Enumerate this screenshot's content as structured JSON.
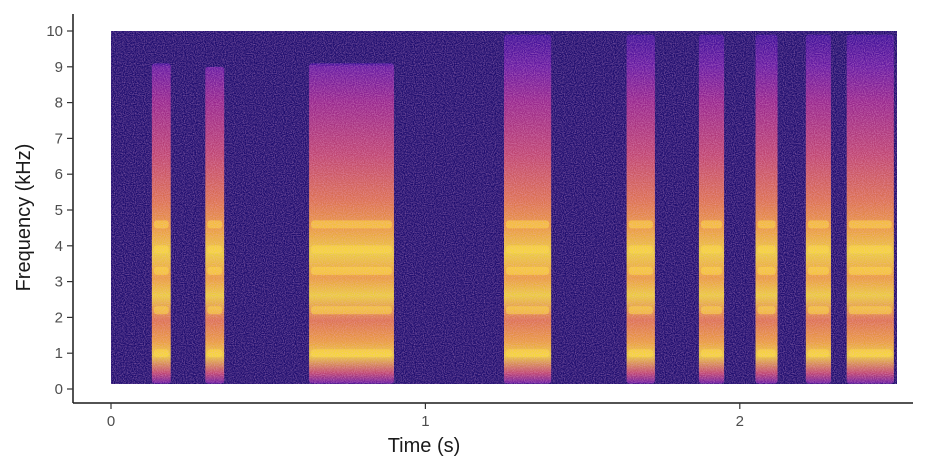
{
  "chart_data": {
    "type": "heatmap",
    "subtype": "spectrogram",
    "title": "",
    "xlabel": "Time (s)",
    "ylabel": "Frequency (kHz)",
    "xlim": [
      0,
      2.5
    ],
    "ylim": [
      0,
      10
    ],
    "x_ticks": [
      0,
      1,
      2
    ],
    "y_ticks": [
      0,
      1,
      2,
      3,
      4,
      5,
      6,
      7,
      8,
      9,
      10
    ],
    "x_tick_labels": [
      "0",
      "1",
      "2"
    ],
    "y_tick_labels": [
      "0",
      "1",
      "2",
      "3",
      "4",
      "5",
      "6",
      "7",
      "8",
      "9",
      "10"
    ],
    "grid": false,
    "legend": "none",
    "colormap": [
      "#0d0887",
      "#3b0d9b",
      "#6a1aa6",
      "#a0288f",
      "#cc4a70",
      "#ec7a4c",
      "#fba938",
      "#fde035"
    ],
    "background_color": "#1c0c6e",
    "sounds": [
      {
        "start": 0.13,
        "end": 0.19,
        "fmax": 9.1
      },
      {
        "start": 0.3,
        "end": 0.36,
        "fmax": 9.0
      },
      {
        "start": 0.63,
        "end": 0.9,
        "fmax": 9.1
      },
      {
        "start": 1.25,
        "end": 1.4,
        "fmax": 9.9
      },
      {
        "start": 1.64,
        "end": 1.73,
        "fmax": 9.9
      },
      {
        "start": 1.87,
        "end": 1.95,
        "fmax": 9.9
      },
      {
        "start": 2.05,
        "end": 2.12,
        "fmax": 9.9
      },
      {
        "start": 2.21,
        "end": 2.29,
        "fmax": 9.9
      },
      {
        "start": 2.34,
        "end": 2.49,
        "fmax": 9.9
      }
    ],
    "energy_bands_khz": [
      1.0,
      2.2,
      3.3,
      3.9,
      4.6
    ]
  }
}
